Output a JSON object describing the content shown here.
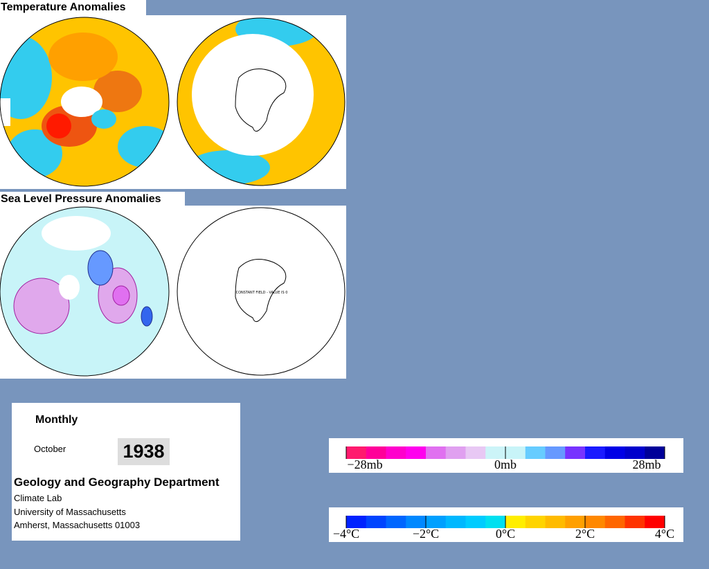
{
  "panels": [
    {
      "title": "Temperature Anomalies"
    },
    {
      "title": "Sea Level Pressure Anomalies",
      "note": "CONSTANT FIELD - VALUE IS 0"
    }
  ],
  "info": {
    "period": "Monthly",
    "month": "October",
    "year": "1938",
    "department": "Geology and Geography Department",
    "lines": [
      "Climate Lab",
      "University of Massachusetts",
      "Amherst, Massachusetts 01003"
    ]
  },
  "legends": [
    {
      "labels": [
        "−28mb",
        "0mb",
        "28mb"
      ],
      "colors": [
        "#ff1a6e",
        "#ff0099",
        "#ff00cc",
        "#ff00ee",
        "#e070f0",
        "#e0a0f0",
        "#e8c8f4",
        "#ccf4f8",
        "#c8f4f8",
        "#66ccff",
        "#6699ff",
        "#7733ff",
        "#1a1aff",
        "#0000e6",
        "#0000cc",
        "#000099"
      ]
    },
    {
      "labels": [
        "−4°C",
        "−2°C",
        "0°C",
        "2°C",
        "4°C"
      ],
      "colors": [
        "#0022ff",
        "#0044ff",
        "#0066ff",
        "#0088ff",
        "#00a0ff",
        "#00b8ff",
        "#00ccff",
        "#00e0f0",
        "#ffee00",
        "#ffd400",
        "#ffbb00",
        "#ffa000",
        "#ff8800",
        "#ff6600",
        "#ff3300",
        "#ff0000"
      ]
    }
  ]
}
